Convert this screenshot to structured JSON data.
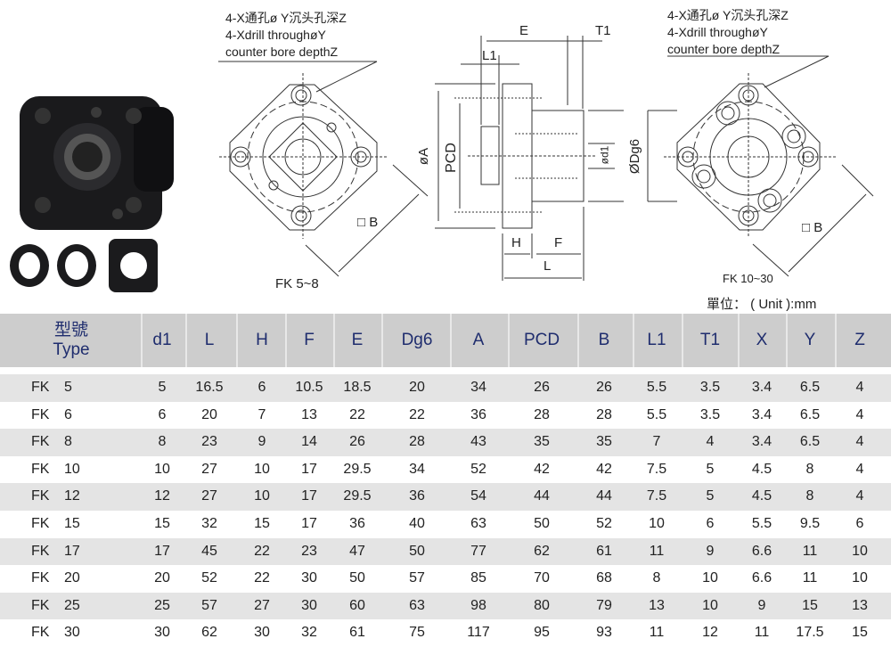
{
  "drawing": {
    "note_left": [
      "4-X通孔ø Y沉头孔深Z",
      "4-Xdrill throughøY",
      "counter bore depthZ"
    ],
    "note_right": [
      "4-X通孔ø Y沉头孔深Z",
      "4-Xdrill throughøY",
      "counter bore depthZ"
    ],
    "caption_left": "FK 5~8",
    "caption_right": "FK 10~30",
    "unit": "單位： ( Unit ):mm",
    "dims": {
      "E": "E",
      "T1": "T1",
      "L1": "L1",
      "A": "øA",
      "PCD": "PCD",
      "d1": "ød1",
      "Dg6": "ØDg6",
      "H": "H",
      "F": "F",
      "L": "L",
      "B_left": "□ B",
      "B_right": "□ B"
    }
  },
  "table": {
    "type_header": [
      "型號",
      "Type"
    ],
    "columns": [
      "d1",
      "L",
      "H",
      "F",
      "E",
      "Dg6",
      "A",
      "PCD",
      "B",
      "L1",
      "T1",
      "X",
      "Y",
      "Z"
    ],
    "rows": [
      {
        "prefix": "FK",
        "size": "5",
        "values": [
          "5",
          "16.5",
          "6",
          "10.5",
          "18.5",
          "20",
          "34",
          "26",
          "26",
          "5.5",
          "3.5",
          "3.4",
          "6.5",
          "4"
        ]
      },
      {
        "prefix": "FK",
        "size": "6",
        "values": [
          "6",
          "20",
          "7",
          "13",
          "22",
          "22",
          "36",
          "28",
          "28",
          "5.5",
          "3.5",
          "3.4",
          "6.5",
          "4"
        ]
      },
      {
        "prefix": "FK",
        "size": "8",
        "values": [
          "8",
          "23",
          "9",
          "14",
          "26",
          "28",
          "43",
          "35",
          "35",
          "7",
          "4",
          "3.4",
          "6.5",
          "4"
        ]
      },
      {
        "prefix": "FK",
        "size": "10",
        "values": [
          "10",
          "27",
          "10",
          "17",
          "29.5",
          "34",
          "52",
          "42",
          "42",
          "7.5",
          "5",
          "4.5",
          "8",
          "4"
        ]
      },
      {
        "prefix": "FK",
        "size": "12",
        "values": [
          "12",
          "27",
          "10",
          "17",
          "29.5",
          "36",
          "54",
          "44",
          "44",
          "7.5",
          "5",
          "4.5",
          "8",
          "4"
        ]
      },
      {
        "prefix": "FK",
        "size": "15",
        "values": [
          "15",
          "32",
          "15",
          "17",
          "36",
          "40",
          "63",
          "50",
          "52",
          "10",
          "6",
          "5.5",
          "9.5",
          "6"
        ]
      },
      {
        "prefix": "FK",
        "size": "17",
        "values": [
          "17",
          "45",
          "22",
          "23",
          "47",
          "50",
          "77",
          "62",
          "61",
          "11",
          "9",
          "6.6",
          "11",
          "10"
        ]
      },
      {
        "prefix": "FK",
        "size": "20",
        "values": [
          "20",
          "52",
          "22",
          "30",
          "50",
          "57",
          "85",
          "70",
          "68",
          "8",
          "10",
          "6.6",
          "11",
          "10"
        ]
      },
      {
        "prefix": "FK",
        "size": "25",
        "values": [
          "25",
          "57",
          "27",
          "30",
          "60",
          "63",
          "98",
          "80",
          "79",
          "13",
          "10",
          "9",
          "15",
          "13"
        ]
      },
      {
        "prefix": "FK",
        "size": "30",
        "values": [
          "30",
          "62",
          "30",
          "32",
          "61",
          "75",
          "117",
          "95",
          "93",
          "11",
          "12",
          "11",
          "17.5",
          "15"
        ]
      }
    ]
  },
  "colors": {
    "header_bg": "#cdcdcd",
    "header_text": "#1f2d6e",
    "row_alt": "#e4e4e4"
  }
}
